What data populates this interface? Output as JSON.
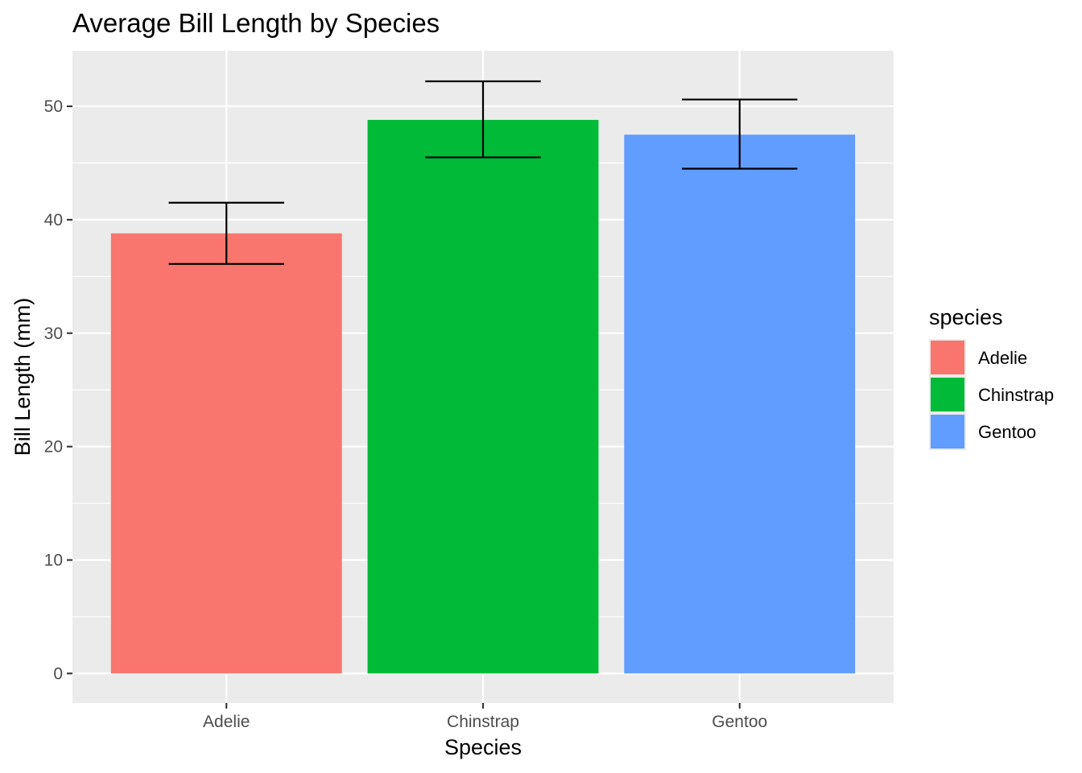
{
  "chart_data": {
    "type": "bar",
    "title": "Average Bill Length by Species",
    "xlabel": "Species",
    "ylabel": "Bill Length (mm)",
    "categories": [
      "Adelie",
      "Chinstrap",
      "Gentoo"
    ],
    "values": [
      38.8,
      48.8,
      47.5
    ],
    "error_bars": [
      {
        "low": 36.1,
        "high": 41.5
      },
      {
        "low": 45.5,
        "high": 52.2
      },
      {
        "low": 44.5,
        "high": 50.6
      }
    ],
    "colors": [
      "#F8766D",
      "#00BA38",
      "#619CFF"
    ],
    "ylim": [
      -2.6,
      54.9
    ],
    "yticks": [
      0,
      10,
      20,
      30,
      40,
      50
    ],
    "grid": true,
    "legend": {
      "title": "species",
      "position": "right",
      "entries": [
        "Adelie",
        "Chinstrap",
        "Gentoo"
      ]
    },
    "panel_background": "#EBEBEB",
    "gridline_color": "#FFFFFF"
  }
}
